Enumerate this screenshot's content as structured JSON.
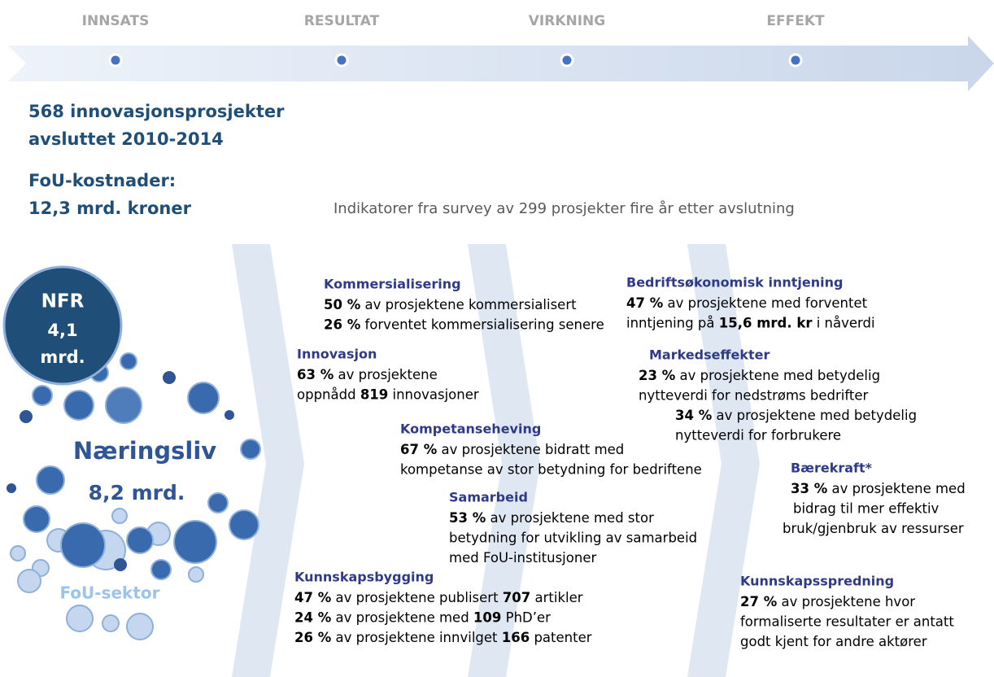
{
  "stages": [
    "INNSATS",
    "RESULTAT",
    "VIRKNING",
    "EFFEKT"
  ],
  "summary": {
    "projects_line1": "568 innovasjonsprosjekter",
    "projects_line2": "avsluttet 2010-2014",
    "cost_label": "FoU-kostnader:",
    "cost_value": "12,3 mrd. kroner"
  },
  "survey_note": "Indikatorer fra survey av 299 prosjekter fire år etter avslutning",
  "bubbles": {
    "nfr_label": "NFR",
    "nfr_value": "4,1",
    "nfr_unit": "mrd.",
    "business_label": "Næringsliv",
    "business_value": "8,2 mrd.",
    "research_label": "FoU-sektor"
  },
  "blocks": [
    {
      "title": "Kommersialisering",
      "lines": [
        [
          {
            "bold": "50 %"
          },
          {
            "text": " av prosjektene kommersialisert"
          }
        ],
        [
          {
            "bold": "26 %"
          },
          {
            "text": " forventet kommersialisering senere"
          }
        ]
      ]
    },
    {
      "title": "Innovasjon",
      "lines": [
        [
          {
            "bold": "63 %"
          },
          {
            "text": " av prosjektene"
          }
        ],
        [
          {
            "text": "oppnådd "
          },
          {
            "bold": "819"
          },
          {
            "text": " innovasjoner"
          }
        ]
      ]
    },
    {
      "title": "Kompetanseheving",
      "lines": [
        [
          {
            "bold": "67 %"
          },
          {
            "text": " av prosjektene bidratt med"
          }
        ],
        [
          {
            "text": "kompetanse av stor betydning for bedriftene"
          }
        ]
      ]
    },
    {
      "title": "Samarbeid",
      "lines": [
        [
          {
            "bold": "53 %"
          },
          {
            "text": " av prosjektene med stor"
          }
        ],
        [
          {
            "text": "betydning for utvikling av samarbeid"
          }
        ],
        [
          {
            "text": "med FoU-institusjoner"
          }
        ]
      ]
    },
    {
      "title": "Kunnskapsbygging",
      "lines": [
        [
          {
            "bold": "47 %"
          },
          {
            "text": " av prosjektene publisert "
          },
          {
            "bold": "707"
          },
          {
            "text": " artikler"
          }
        ],
        [
          {
            "bold": "24 %"
          },
          {
            "text": " av prosjektene med "
          },
          {
            "bold": "109"
          },
          {
            "text": " PhD’er"
          }
        ],
        [
          {
            "bold": "26 %"
          },
          {
            "text": " av prosjektene innvilget "
          },
          {
            "bold": "166"
          },
          {
            "text": " patenter"
          }
        ]
      ]
    },
    {
      "title": "Bedriftsøkonomisk inntjening",
      "lines": [
        [
          {
            "bold": "47 %"
          },
          {
            "text": " av prosjektene med forventet"
          }
        ],
        [
          {
            "text": "inntjening på "
          },
          {
            "bold": "15,6 mrd. kr"
          },
          {
            "text": " i nåverdi"
          }
        ]
      ]
    },
    {
      "title": "Markedseffekter",
      "lines": [
        [
          {
            "bold": "23 %"
          },
          {
            "text": " av prosjektene med betydelig"
          }
        ],
        [
          {
            "text": "nytteverdi for nedstrøms bedrifter"
          }
        ],
        [
          {
            "bold": "34 %"
          },
          {
            "text": " av prosjektene med betydelig"
          }
        ],
        [
          {
            "text": "nytteverdi for forbrukere"
          }
        ]
      ]
    },
    {
      "title": "Bærekraft*",
      "lines": [
        [
          {
            "bold": "33 %"
          },
          {
            "text": " av prosjektene med"
          }
        ],
        [
          {
            "text": "bidrag til mer effektiv"
          }
        ],
        [
          {
            "text": "bruk/gjenbruk av ressurser"
          }
        ]
      ]
    },
    {
      "title": "Kunnskapsspredning",
      "lines": [
        [
          {
            "bold": "27 %"
          },
          {
            "text": " av prosjektene hvor"
          }
        ],
        [
          {
            "text": "formaliserte resultater er antatt"
          }
        ],
        [
          {
            "text": "godt kjent for andre aktører"
          }
        ]
      ]
    }
  ]
}
